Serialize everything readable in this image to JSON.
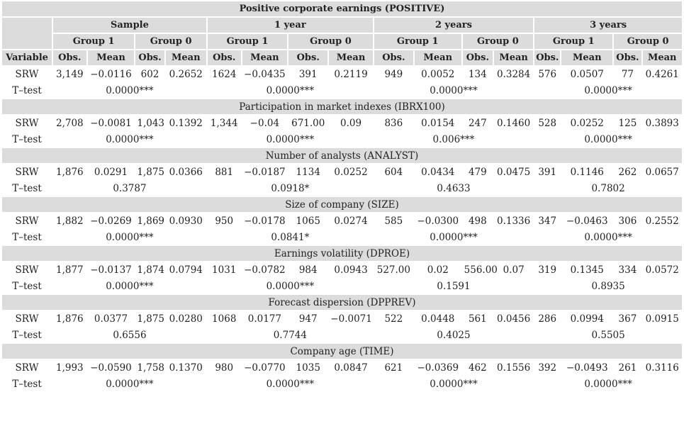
{
  "title": "Positive corporate earnings (POSITIVE)",
  "periods": [
    "Sample",
    "1 year",
    "2 years",
    "3 years"
  ],
  "groups": [
    "Group 1",
    "Group 0"
  ],
  "col_headers": {
    "variable": "Variable",
    "obs": "Obs.",
    "mean": "Mean"
  },
  "sections": [
    {
      "title": "",
      "srw_label": "SRW",
      "srw": [
        "3,149",
        "−0.0116",
        "602",
        "0.2652",
        "1624",
        "−0.0435",
        "391",
        "0.2119",
        "949",
        "0.0052",
        "134",
        "0.3284",
        "576",
        "0.0507",
        "77",
        "0.4261"
      ],
      "ttest_label": "T–test",
      "ttest": [
        "0.0000***",
        "0.0000***",
        "0.0000***",
        "0.0000***"
      ]
    },
    {
      "title": "Participation in market indexes (IBRX100)",
      "srw_label": "SRW",
      "srw": [
        "2,708",
        "−0.0081",
        "1,043",
        "0.1392",
        "1,344",
        "−0.04",
        "671.00",
        "0.09",
        "836",
        "0.0154",
        "247",
        "0.1460",
        "528",
        "0.0252",
        "125",
        "0.3893"
      ],
      "ttest_label": "T–test",
      "ttest": [
        "0.0000***",
        "0.0000***",
        "0.006***",
        "0.0000***"
      ]
    },
    {
      "title": "Number of analysts (ANALYST)",
      "srw_label": "SRW",
      "srw": [
        "1,876",
        "0.0291",
        "1,875",
        "0.0366",
        "881",
        "−0.0187",
        "1134",
        "0.0252",
        "604",
        "0.0434",
        "479",
        "0.0475",
        "391",
        "0.1146",
        "262",
        "0.0657"
      ],
      "ttest_label": "T–test",
      "ttest": [
        "0.3787",
        "0.0918*",
        "0.4633",
        "0.7802"
      ]
    },
    {
      "title": "Size of company (SIZE)",
      "srw_label": "SRW",
      "srw": [
        "1,882",
        "−0.0269",
        "1,869",
        "0.0930",
        "950",
        "−0.0178",
        "1065",
        "0.0274",
        "585",
        "−0.0300",
        "498",
        "0.1336",
        "347",
        "−0.0463",
        "306",
        "0.2552"
      ],
      "ttest_label": "T–test",
      "ttest": [
        "0.0000***",
        "0.0841*",
        "0.0000***",
        "0.0000***"
      ]
    },
    {
      "title": "Earnings volatility (DPROE)",
      "srw_label": "SRW",
      "srw": [
        "1,877",
        "−0.0137",
        "1,874",
        "0.0794",
        "1031",
        "−0.0782",
        "984",
        "0.0943",
        "527.00",
        "0.02",
        "556.00",
        "0.07",
        "319",
        "0.1345",
        "334",
        "0.0572"
      ],
      "ttest_label": "T–test",
      "ttest": [
        "0.0000***",
        "0.0000***",
        "0.1591",
        "0.8935"
      ]
    },
    {
      "title": "Forecast dispersion (DPPREV)",
      "srw_label": "SRW",
      "srw": [
        "1,876",
        "0.0377",
        "1,875",
        "0.0280",
        "1068",
        "0.0177",
        "947",
        "−0.0071",
        "522",
        "0.0448",
        "561",
        "0.0456",
        "286",
        "0.0994",
        "367",
        "0.0915"
      ],
      "ttest_label": "T–test",
      "ttest": [
        "0.6556",
        "0.7744",
        "0.4025",
        "0.5505"
      ]
    },
    {
      "title": "Company age (TIME)",
      "srw_label": "SRW",
      "srw": [
        "1,993",
        "−0.0590",
        "1,758",
        "0.1370",
        "980",
        "−0.0770",
        "1035",
        "0.0847",
        "621",
        "−0.0369",
        "462",
        "0.1556",
        "392",
        "−0.0493",
        "261",
        "0.3116"
      ],
      "ttest_label": "T–test",
      "ttest": [
        "0.0000***",
        "0.0000***",
        "0.0000***",
        "0.0000***"
      ]
    }
  ]
}
